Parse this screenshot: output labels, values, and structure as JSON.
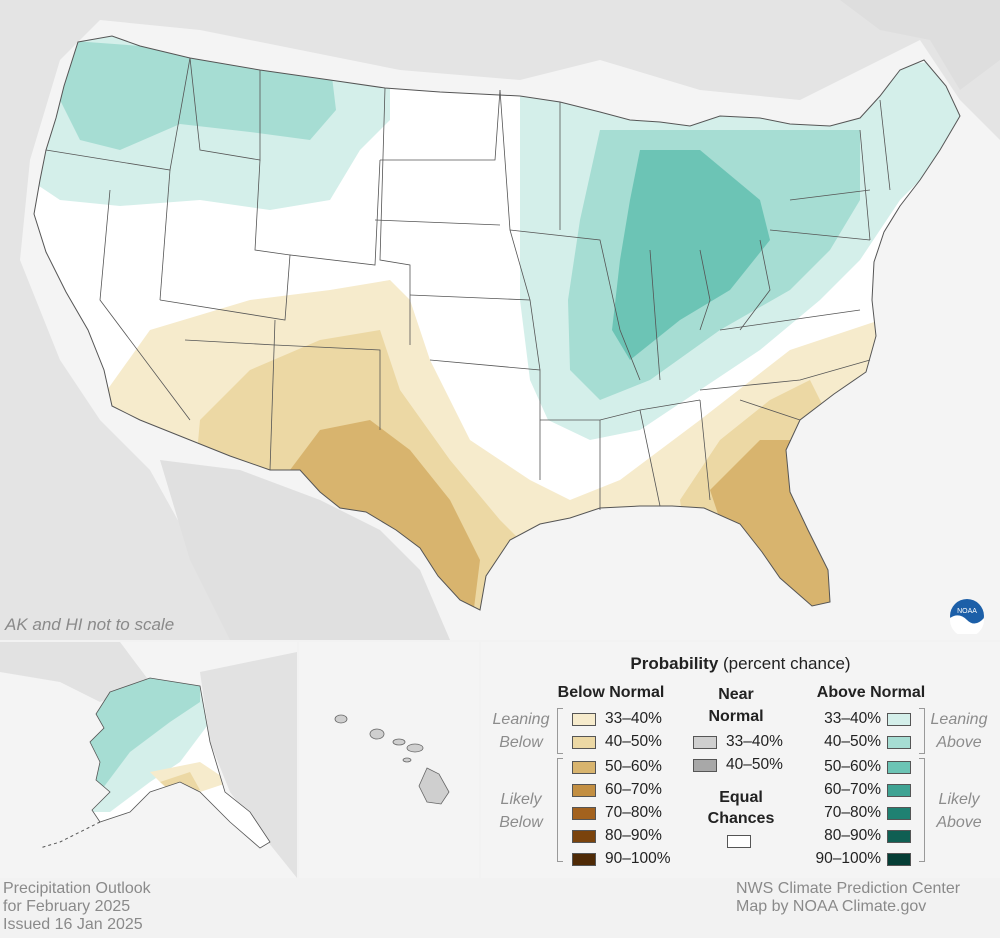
{
  "map": {
    "scale_note": "AK and HI not to scale",
    "logo_text": "NOAA"
  },
  "legend": {
    "title_bold": "Probability",
    "title_rest": " (percent chance)",
    "below": {
      "header": "Below Normal",
      "group_leaning": [
        "Leaning",
        "Below"
      ],
      "group_likely": [
        "Likely",
        "Below"
      ],
      "items": [
        {
          "label": "33–40%",
          "color": "#f6ebcc"
        },
        {
          "label": "40–50%",
          "color": "#ecd8a4"
        },
        {
          "label": "50–60%",
          "color": "#d8b46e"
        },
        {
          "label": "60–70%",
          "color": "#c38f42"
        },
        {
          "label": "70–80%",
          "color": "#a3621e"
        },
        {
          "label": "80–90%",
          "color": "#7a430c"
        },
        {
          "label": "90–100%",
          "color": "#4f2a06"
        }
      ]
    },
    "near": {
      "header_line1": "Near",
      "header_line2": "Normal",
      "items": [
        {
          "label": "33–40%",
          "color": "#cfcfcf"
        },
        {
          "label": "40–50%",
          "color": "#a8a8a8"
        }
      ],
      "equal_line1": "Equal",
      "equal_line2": "Chances",
      "equal_color": "#ffffff"
    },
    "above": {
      "header": "Above Normal",
      "group_leaning": [
        "Leaning",
        "Above"
      ],
      "group_likely": [
        "Likely",
        "Above"
      ],
      "items": [
        {
          "label": "33–40%",
          "color": "#d4efea"
        },
        {
          "label": "40–50%",
          "color": "#a6ddd3"
        },
        {
          "label": "50–60%",
          "color": "#6cc4b5"
        },
        {
          "label": "60–70%",
          "color": "#3fa393"
        },
        {
          "label": "70–80%",
          "color": "#1f8172"
        },
        {
          "label": "80–90%",
          "color": "#0f5f53"
        },
        {
          "label": "90–100%",
          "color": "#053d35"
        }
      ]
    }
  },
  "footer": {
    "left": [
      "Precipitation Outlook",
      "for February 2025",
      "Issued 16 Jan 2025"
    ],
    "right": [
      "NWS Climate Prediction Center",
      "Map by NOAA Climate.gov"
    ]
  }
}
